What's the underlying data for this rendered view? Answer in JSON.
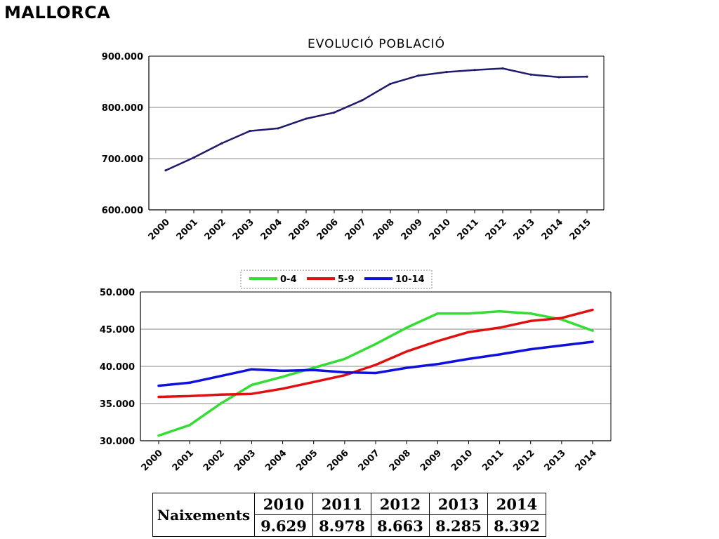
{
  "page": {
    "title": "MALLORCA"
  },
  "chart_data": [
    {
      "type": "line",
      "title": "EVOLUCIÓ POBLACIÓ",
      "categories": [
        "2000",
        "2001",
        "2002",
        "2003",
        "2004",
        "2005",
        "2006",
        "2007",
        "2008",
        "2009",
        "2010",
        "2011",
        "2012",
        "2013",
        "2014",
        "2015"
      ],
      "series": [
        {
          "values": [
            677000,
            702000,
            730000,
            754000,
            759000,
            778000,
            790000,
            814000,
            846000,
            862000,
            869000,
            873000,
            876000,
            864000,
            859000,
            860000
          ],
          "color": "#1f1a6b"
        }
      ],
      "yticks": [
        "600.000",
        "700.000",
        "800.000",
        "900.000"
      ],
      "ylim": [
        600000,
        900000
      ],
      "grid": true,
      "legend": "none"
    },
    {
      "type": "line",
      "title": "",
      "categories": [
        "2000",
        "2001",
        "2002",
        "2003",
        "2004",
        "2005",
        "2006",
        "2007",
        "2008",
        "2009",
        "2010",
        "2011",
        "2012",
        "2013",
        "2014"
      ],
      "series": [
        {
          "name": "0-4",
          "color": "#33dd33",
          "values": [
            30700,
            32100,
            35000,
            37500,
            38600,
            39800,
            41000,
            43000,
            45200,
            47100,
            47100,
            47400,
            47100,
            46300,
            44800
          ]
        },
        {
          "name": "5-9",
          "color": "#e01010",
          "values": [
            35900,
            36000,
            36200,
            36300,
            37000,
            37900,
            38800,
            40200,
            42000,
            43400,
            44600,
            45200,
            46100,
            46500,
            47600
          ]
        },
        {
          "name": "10-14",
          "color": "#1010dd",
          "values": [
            37400,
            37800,
            38700,
            39600,
            39400,
            39500,
            39200,
            39100,
            39800,
            40300,
            41000,
            41600,
            42300,
            42800,
            43300
          ]
        }
      ],
      "yticks": [
        "30.000",
        "35.000",
        "40.000",
        "45.000",
        "50.000"
      ],
      "ylim": [
        30000,
        50000
      ],
      "grid": true,
      "legend": "top"
    }
  ],
  "table": {
    "row_label": "Naixements",
    "years": [
      "2010",
      "2011",
      "2012",
      "2013",
      "2014"
    ],
    "values": [
      "9.629",
      "8.978",
      "8.663",
      "8.285",
      "8.392"
    ]
  }
}
